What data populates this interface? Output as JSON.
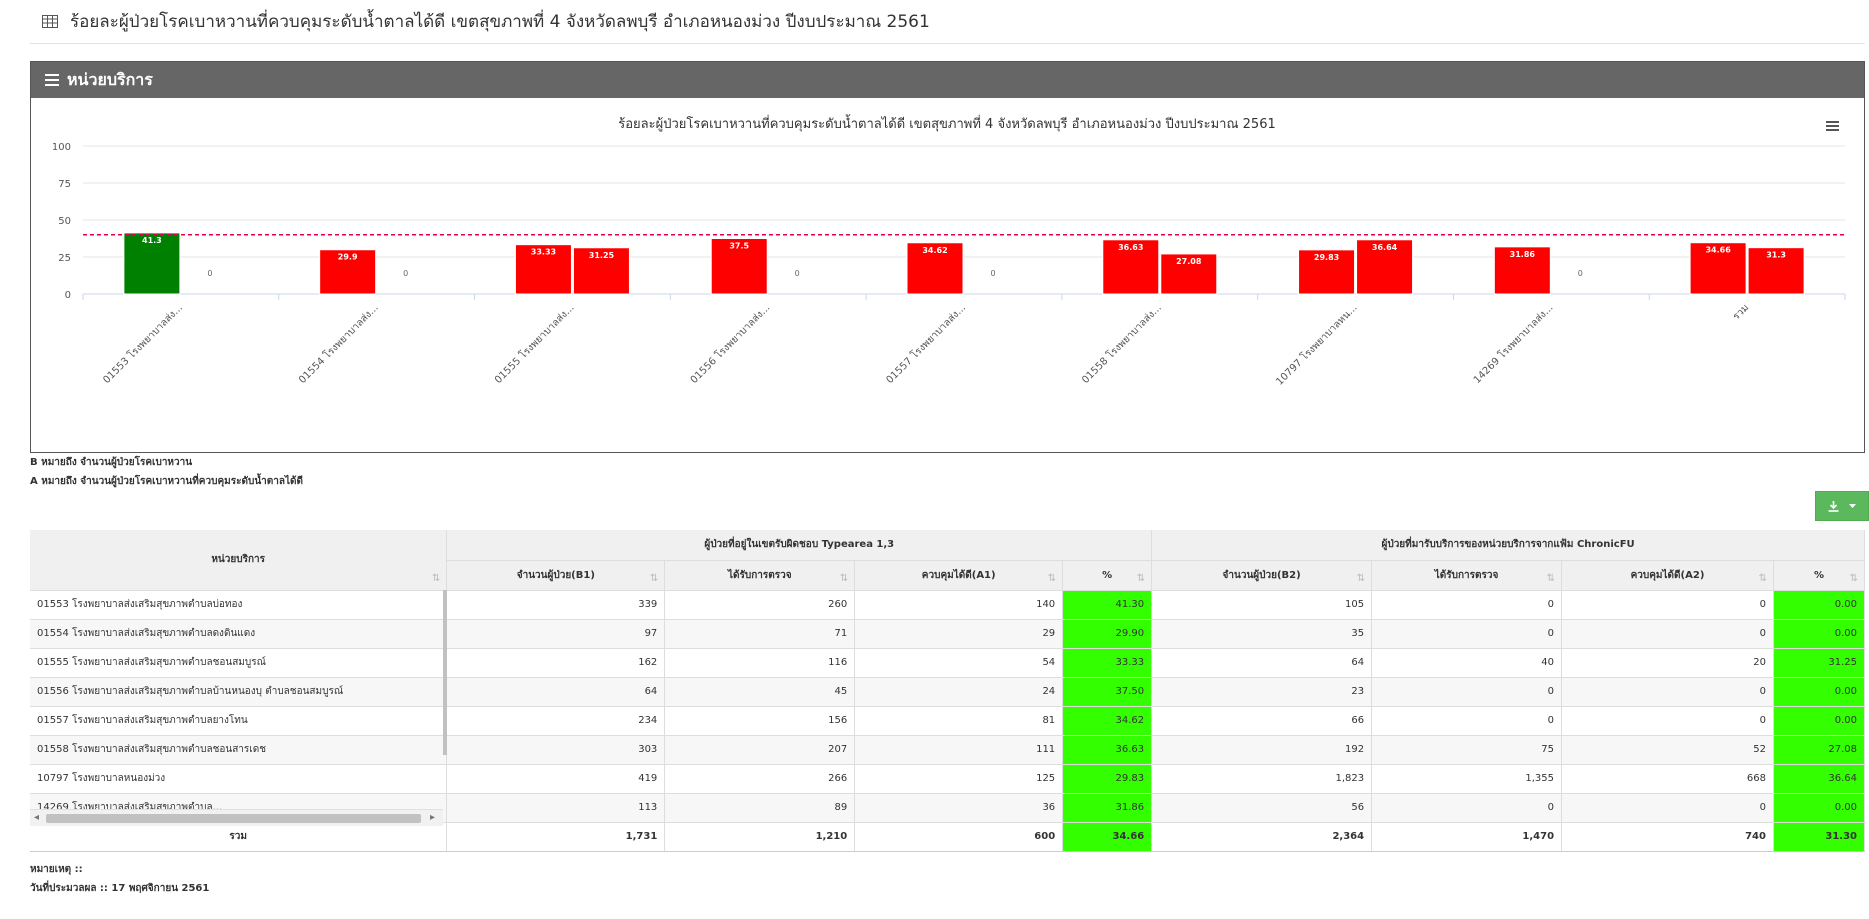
{
  "header": {
    "title": "ร้อยละผู้ป่วยโรคเบาหวานที่ควบคุมระดับน้ำตาลได้ดี เขตสุขภาพที่ 4 จังหวัดลพบุรี อำเภอหนองม่วง ปีงบประมาณ 2561"
  },
  "panel": {
    "title": "หน่วยบริการ"
  },
  "chart_data": {
    "type": "bar",
    "title": "ร้อยละผู้ป่วยโรคเบาหวานที่ควบคุมระดับน้ำตาลได้ดี เขตสุขภาพที่ 4 จังหวัดลพบุรี อำเภอหนองม่วง ปีงบประมาณ 2561",
    "categories": [
      "01553 โรงพยาบาลส่ง...",
      "01554 โรงพยาบาลส่ง...",
      "01555 โรงพยาบาลส่ง...",
      "01556 โรงพยาบาลส่ง...",
      "01557 โรงพยาบาลส่ง...",
      "01558 โรงพยาบาลส่ง...",
      "10797 โรงพยาบาลหน...",
      "14269 โรงพยาบาลส่ง...",
      "รวม"
    ],
    "series": [
      {
        "values": [
          41.3,
          29.9,
          33.33,
          37.5,
          34.62,
          36.63,
          29.83,
          31.86,
          34.66
        ],
        "labels": [
          "41.3",
          "29.9",
          "33.33",
          "37.5",
          "34.62",
          "36.63",
          "29.83",
          "31.86",
          "34.66"
        ]
      },
      {
        "values": [
          0,
          0,
          31.25,
          0,
          0,
          27.08,
          36.64,
          0,
          31.3
        ],
        "labels": [
          "0",
          "0",
          "31.25",
          "0",
          "0",
          "27.08",
          "36.64",
          "0",
          "31.3"
        ]
      }
    ],
    "highlight": {
      "index": 0,
      "series": 0,
      "color": "#008000"
    },
    "bar_color": "#ff0000",
    "target_line": 40,
    "target_color": "#e0004f",
    "ylim": [
      0,
      100
    ],
    "yticks": [
      0,
      25,
      50,
      75,
      100
    ],
    "grid": true,
    "legend": "none"
  },
  "notes": {
    "b_note": "B หมายถึง จำนวนผู้ป่วยโรคเบาหวาน",
    "a_note": "A หมายถึง จำนวนผู้ป่วยโรคเบาหวานที่ควบคุมระดับน้ำตาลได้ดี"
  },
  "table": {
    "unit_header": "หน่วยบริการ",
    "group1_header": "ผู้ป่วยที่อยู่ในเขตรับผิดชอบ Typearea 1,3",
    "group2_header": "ผู้ป่วยที่มารับบริการของหน่วยบริการจากแฟ้ม ChronicFU",
    "columns": [
      "จำนวนผู้ป่วย(B1)",
      "ได้รับการตรวจ",
      "ควบคุมได้ดี(A1)",
      "%",
      "จำนวนผู้ป่วย(B2)",
      "ได้รับการตรวจ",
      "ควบคุมได้ดี(A2)",
      "%"
    ],
    "rows": [
      {
        "name": "01553 โรงพยาบาลส่งเสริมสุขภาพตำบลบ่อทอง",
        "v": [
          "339",
          "260",
          "140",
          "41.30",
          "105",
          "0",
          "0",
          "0.00"
        ]
      },
      {
        "name": "01554 โรงพยาบาลส่งเสริมสุขภาพตำบลดงดินแดง",
        "v": [
          "97",
          "71",
          "29",
          "29.90",
          "35",
          "0",
          "0",
          "0.00"
        ]
      },
      {
        "name": "01555 โรงพยาบาลส่งเสริมสุขภาพตำบลชอนสมบูรณ์",
        "v": [
          "162",
          "116",
          "54",
          "33.33",
          "64",
          "40",
          "20",
          "31.25"
        ]
      },
      {
        "name": "01556 โรงพยาบาลส่งเสริมสุขภาพตำบลบ้านหนองบุ ตำบลชอนสมบูรณ์",
        "v": [
          "64",
          "45",
          "24",
          "37.50",
          "23",
          "0",
          "0",
          "0.00"
        ]
      },
      {
        "name": "01557 โรงพยาบาลส่งเสริมสุขภาพตำบลยางโทน",
        "v": [
          "234",
          "156",
          "81",
          "34.62",
          "66",
          "0",
          "0",
          "0.00"
        ]
      },
      {
        "name": "01558 โรงพยาบาลส่งเสริมสุขภาพตำบลชอนสารเดช",
        "v": [
          "303",
          "207",
          "111",
          "36.63",
          "192",
          "75",
          "52",
          "27.08"
        ]
      },
      {
        "name": "10797 โรงพยาบาลหนองม่วง",
        "v": [
          "419",
          "266",
          "125",
          "29.83",
          "1,823",
          "1,355",
          "668",
          "36.64"
        ]
      },
      {
        "name": "14269 โรงพยาบาลส่งเสริมสุขภาพตำบล...",
        "v": [
          "113",
          "89",
          "36",
          "31.86",
          "56",
          "0",
          "0",
          "0.00"
        ]
      }
    ],
    "total": {
      "name": "รวม",
      "v": [
        "1,731",
        "1,210",
        "600",
        "34.66",
        "2,364",
        "1,470",
        "740",
        "31.30"
      ]
    }
  },
  "footer": {
    "remark": "หมายเหตุ ::",
    "processed": "วันที่ประมวลผล :: 17 พฤศจิกายน 2561"
  }
}
